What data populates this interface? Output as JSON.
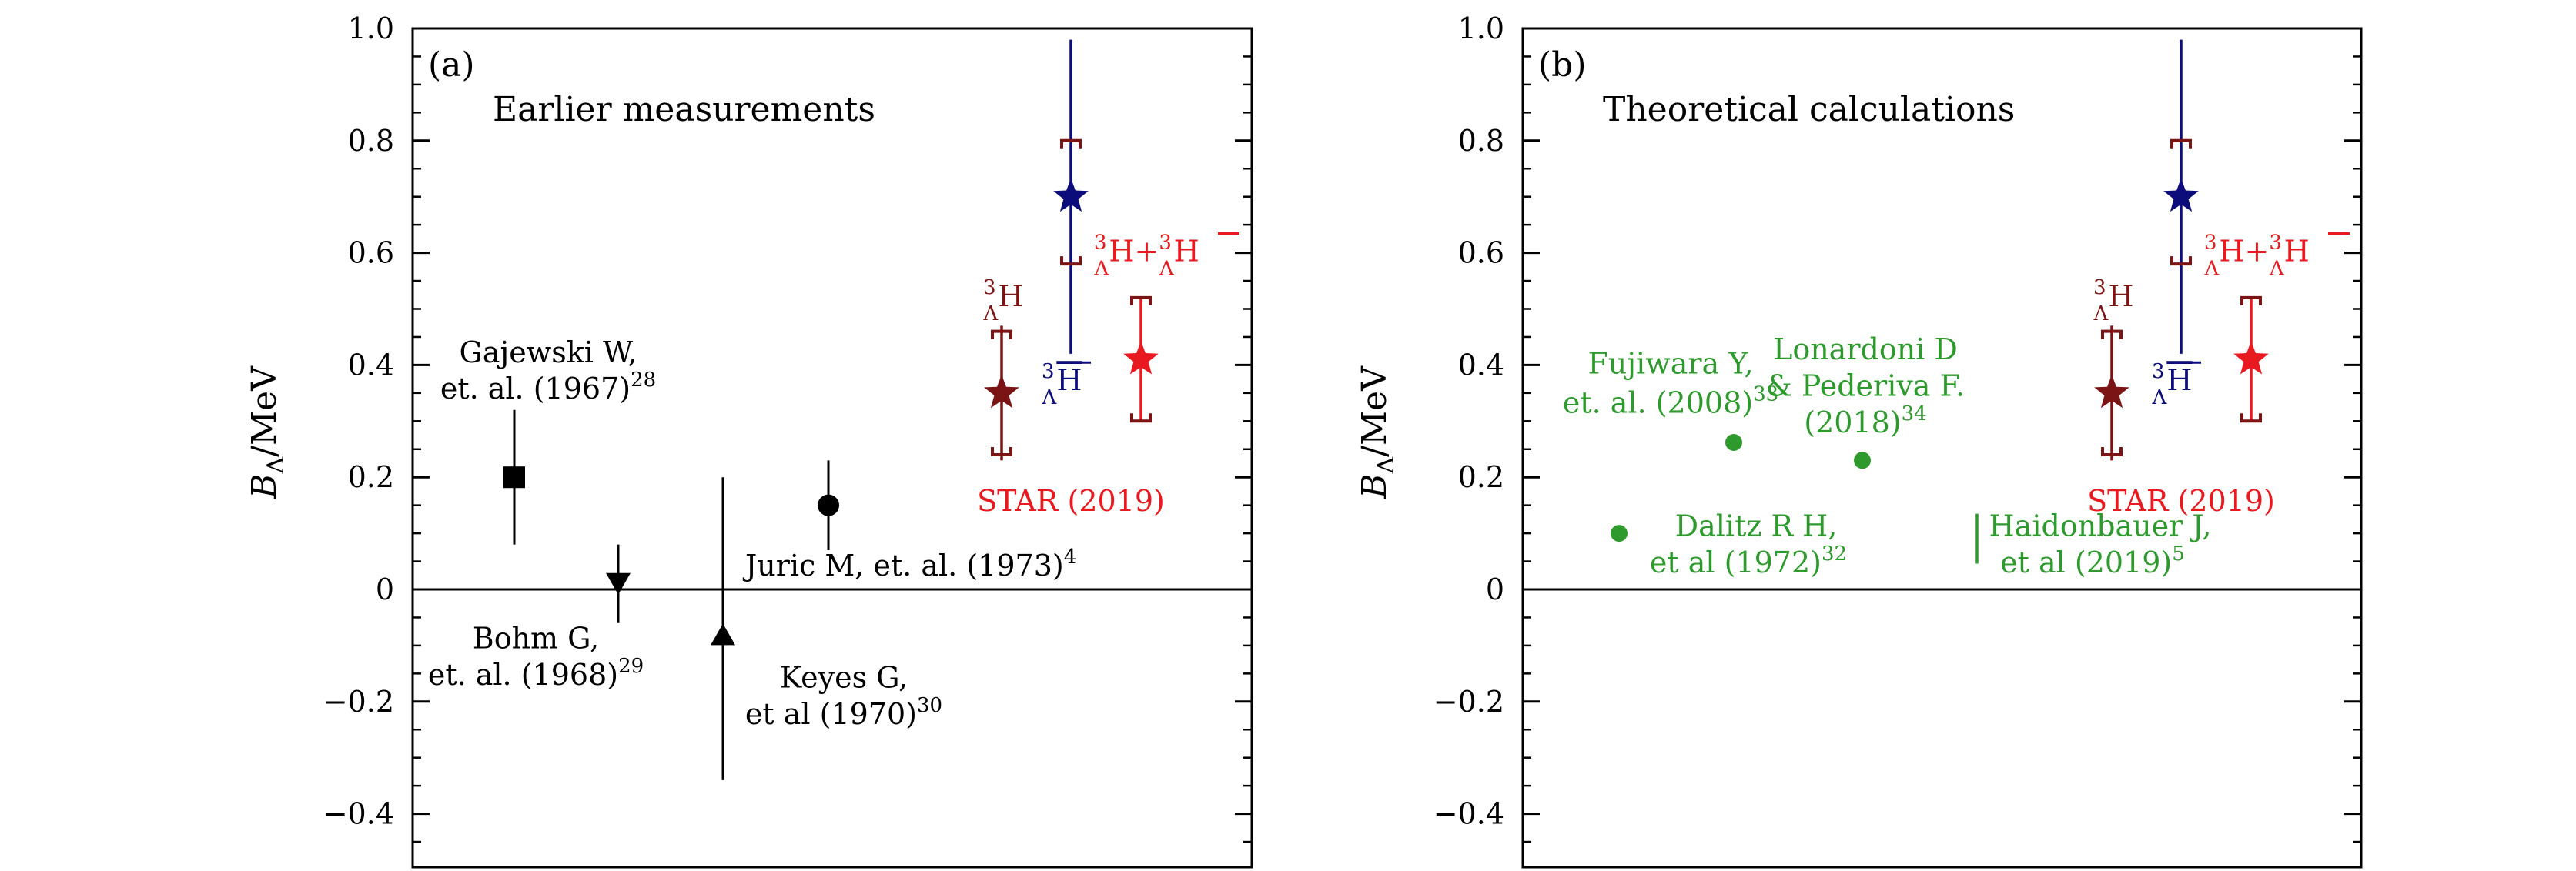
{
  "chart_data": [
    {
      "type": "scatter",
      "panel_label": "(a)",
      "heading": "Earlier measurements",
      "ylabel": "B",
      "ylabel_sub": "Λ",
      "ylabel_unit": "/MeV",
      "ylim": [
        -0.5,
        1.0
      ],
      "yticks": [
        -0.4,
        -0.2,
        0,
        0.2,
        0.4,
        0.6,
        0.8,
        1.0
      ],
      "ytick_labels": [
        "−0.4",
        "−0.2",
        "0",
        "0.2",
        "0.4",
        "0.6",
        "0.8",
        "1.0"
      ],
      "zero_line": true,
      "measurements": [
        {
          "name": "Gajewski W",
          "marker": "square",
          "value": 0.2,
          "err_low": 0.12,
          "err_high": 0.12,
          "color": "#000000",
          "label_lines": [
            "Gajewski W,",
            "et. al. (1967)"
          ],
          "ref": "28"
        },
        {
          "name": "Bohm G",
          "marker": "triangle-down",
          "value": 0.01,
          "err_low": 0.07,
          "err_high": 0.07,
          "color": "#000000",
          "label_lines": [
            "Bohm G,",
            "et. al. (1968)"
          ],
          "ref": "29"
        },
        {
          "name": "Keyes G",
          "marker": "triangle-up",
          "value": -0.08,
          "err_low": 0.26,
          "err_high": 0.28,
          "color": "#000000",
          "label_lines": [
            "Keyes G,",
            "et al (1970)"
          ],
          "ref": "30"
        },
        {
          "name": "Juric M",
          "marker": "circle",
          "value": 0.15,
          "err_low": 0.08,
          "err_high": 0.08,
          "color": "#000000",
          "label_lines": [
            "Juric M, et. al. (1973)"
          ],
          "ref": "4"
        }
      ],
      "star": [
        {
          "name": "hypertriton",
          "label_sup": "3",
          "label_sub": "Λ",
          "label_main": "H",
          "bar": false,
          "value": 0.35,
          "stat_low": 0.12,
          "stat_high": 0.12,
          "sys_low": 0.11,
          "sys_high": 0.11,
          "color": "#7b1414"
        },
        {
          "name": "antihypertriton",
          "label_sup": "3",
          "label_sub": "Λ",
          "label_main": "H",
          "bar": true,
          "value": 0.7,
          "stat_low": 0.28,
          "stat_high": 0.28,
          "sys_low": 0.12,
          "sys_high": 0.1,
          "color": "#0c0c7a",
          "syscolor": "#7b1414"
        },
        {
          "name": "combined",
          "label_text": "H+",
          "value": 0.41,
          "stat_low": 0.11,
          "stat_high": 0.11,
          "sys_low": 0.11,
          "sys_high": 0.11,
          "color": "#e8191f",
          "syscolor": "#7b1414"
        }
      ],
      "star_caption": "STAR (2019)"
    },
    {
      "type": "scatter",
      "panel_label": "(b)",
      "heading": "Theoretical calculations",
      "ylabel": "B",
      "ylabel_sub": "Λ",
      "ylabel_unit": "/MeV",
      "ylim": [
        -0.5,
        1.0
      ],
      "yticks": [
        -0.4,
        -0.2,
        0,
        0.2,
        0.4,
        0.6,
        0.8,
        1.0
      ],
      "ytick_labels": [
        "−0.4",
        "−0.2",
        "0",
        "0.2",
        "0.4",
        "0.6",
        "0.8",
        "1.0"
      ],
      "zero_line": true,
      "theory": [
        {
          "name": "Dalitz R H",
          "marker": "circle",
          "value": 0.1,
          "label_lines": [
            "Dalitz R H,",
            "et al (1972)"
          ],
          "ref": "32",
          "color": "#2e9a2e"
        },
        {
          "name": "Fujiwara Y",
          "marker": "circle",
          "value": 0.262,
          "label_lines": [
            "Fujiwara Y,",
            "et. al. (2008)"
          ],
          "ref": "33",
          "color": "#2e9a2e"
        },
        {
          "name": "Lonardoni D",
          "marker": "circle",
          "value": 0.23,
          "label_lines": [
            "Lonardoni D",
            "& Pederiva F.",
            "(2018)"
          ],
          "ref": "34",
          "color": "#2e9a2e"
        },
        {
          "name": "Haidonbauer J",
          "marker": "bar",
          "value_low": 0.046,
          "value_high": 0.135,
          "label_lines": [
            "Haidonbauer J,",
            "et al (2019)"
          ],
          "ref": "5",
          "color": "#2e9a2e"
        }
      ],
      "star": [
        {
          "name": "hypertriton",
          "label_sup": "3",
          "label_sub": "Λ",
          "label_main": "H",
          "bar": false,
          "value": 0.35,
          "stat_low": 0.12,
          "stat_high": 0.12,
          "sys_low": 0.11,
          "sys_high": 0.11,
          "color": "#7b1414"
        },
        {
          "name": "antihypertriton",
          "label_sup": "3",
          "label_sub": "Λ",
          "label_main": "H",
          "bar": true,
          "value": 0.7,
          "stat_low": 0.28,
          "stat_high": 0.28,
          "sys_low": 0.12,
          "sys_high": 0.1,
          "color": "#0c0c7a",
          "syscolor": "#7b1414"
        },
        {
          "name": "combined",
          "label_text": "H+",
          "value": 0.41,
          "stat_low": 0.11,
          "stat_high": 0.11,
          "sys_low": 0.11,
          "sys_high": 0.11,
          "color": "#e8191f",
          "syscolor": "#7b1414"
        }
      ],
      "star_caption": "STAR (2019)"
    }
  ]
}
